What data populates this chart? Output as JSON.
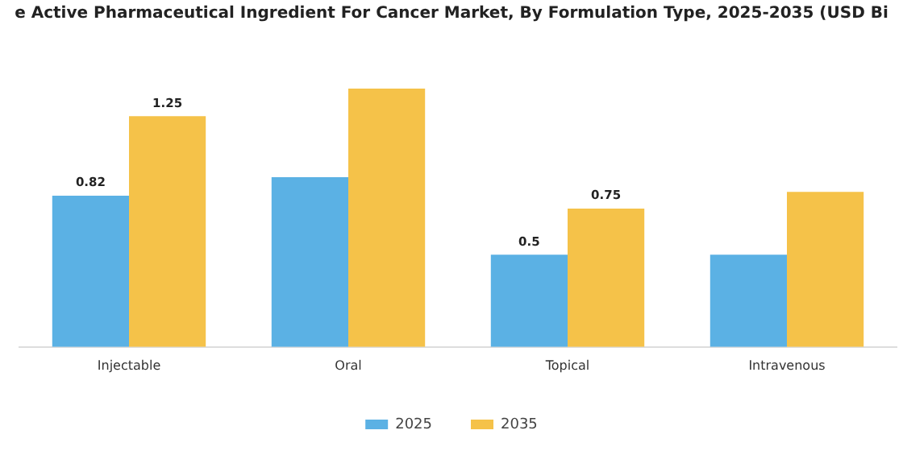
{
  "chart_data": {
    "type": "bar",
    "title": "e Active Pharmaceutical Ingredient For Cancer Market, By Formulation Type, 2025-2035 (USD Bi",
    "categories": [
      "Injectable",
      "Oral",
      "Topical",
      "Intravenous"
    ],
    "series": [
      {
        "name": "2025",
        "color": "#5bb1e4",
        "values": [
          0.82,
          0.92,
          0.5,
          0.5
        ],
        "value_labels": [
          "0.82",
          null,
          "0.5",
          null
        ]
      },
      {
        "name": "2035",
        "color": "#f5c249",
        "values": [
          1.25,
          1.4,
          0.75,
          0.84
        ],
        "value_labels": [
          "1.25",
          null,
          "0.75",
          null
        ]
      }
    ],
    "tick_labels": "x",
    "grid": false,
    "legend": "bottom"
  }
}
